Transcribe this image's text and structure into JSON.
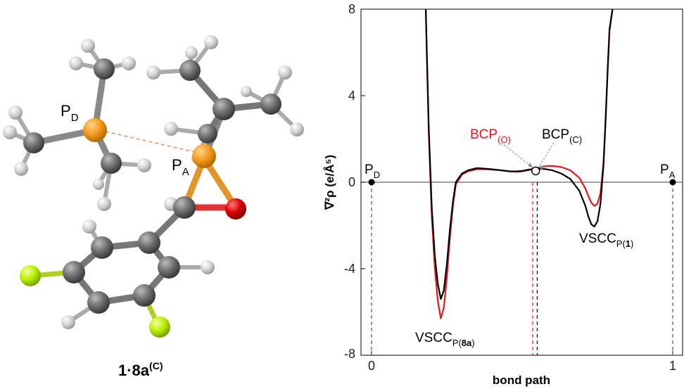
{
  "molecule": {
    "caption_main": "1·8a",
    "caption_sup": "(C)",
    "label_pd": "P",
    "label_pd_sub": "D",
    "label_pa": "P",
    "label_pa_sub": "A"
  },
  "colors": {
    "carbon": "#6b6b6b",
    "hydrogen": "#d6d6d6",
    "phosphorus": "#f39a1e",
    "oxygen": "#d80000",
    "fluorine": "#b8f000",
    "curve_black": "#000000",
    "curve_red": "#e8141c"
  },
  "chart_data": {
    "type": "line",
    "xlabel": "bond path",
    "ylabel": "∇²ρ  (e/Å⁵)",
    "xlim": [
      0,
      1
    ],
    "ylim": [
      -8,
      8
    ],
    "x_ticks": [
      "0",
      "1"
    ],
    "y_ticks": [
      "-8",
      "-4",
      "0",
      "4",
      "8"
    ],
    "series": [
      {
        "color": "black",
        "x": [
          0.18,
          0.185,
          0.19,
          0.2,
          0.21,
          0.22,
          0.23,
          0.24,
          0.25,
          0.26,
          0.27,
          0.28,
          0.3,
          0.32,
          0.35,
          0.38,
          0.4,
          0.43,
          0.46,
          0.48,
          0.5,
          0.52,
          0.54,
          0.56,
          0.58,
          0.6,
          0.63,
          0.66,
          0.69,
          0.71,
          0.72,
          0.73,
          0.74,
          0.75,
          0.76,
          0.77,
          0.775,
          0.78,
          0.785,
          0.79,
          0.8
        ],
        "y": [
          8,
          5.2,
          2.5,
          -1.2,
          -3.4,
          -4.7,
          -5.4,
          -5.0,
          -3.8,
          -2.2,
          -0.9,
          0.0,
          0.4,
          0.55,
          0.65,
          0.62,
          0.6,
          0.55,
          0.5,
          0.5,
          0.52,
          0.58,
          0.62,
          0.63,
          0.6,
          0.55,
          0.4,
          0.15,
          -0.4,
          -1.1,
          -1.6,
          -1.95,
          -2.05,
          -1.8,
          -1.0,
          0.8,
          2.2,
          3.8,
          5.5,
          7.0,
          8
        ]
      },
      {
        "color": "red",
        "x": [
          0.18,
          0.185,
          0.19,
          0.2,
          0.21,
          0.22,
          0.23,
          0.24,
          0.25,
          0.26,
          0.27,
          0.28,
          0.3,
          0.32,
          0.35,
          0.38,
          0.4,
          0.43,
          0.46,
          0.48,
          0.5,
          0.52,
          0.54,
          0.56,
          0.58,
          0.6,
          0.63,
          0.66,
          0.69,
          0.71,
          0.72,
          0.73,
          0.74,
          0.75,
          0.76,
          0.77,
          0.775,
          0.78,
          0.785,
          0.79,
          0.8
        ],
        "y": [
          8,
          5.0,
          2.2,
          -1.6,
          -4.0,
          -5.5,
          -6.3,
          -5.8,
          -4.4,
          -2.6,
          -1.1,
          -0.1,
          0.35,
          0.5,
          0.6,
          0.6,
          0.58,
          0.55,
          0.5,
          0.48,
          0.5,
          0.55,
          0.62,
          0.7,
          0.74,
          0.75,
          0.7,
          0.55,
          0.2,
          -0.3,
          -0.65,
          -0.95,
          -1.1,
          -1.0,
          -0.5,
          0.9,
          2.3,
          3.9,
          5.6,
          7.1,
          8
        ]
      }
    ],
    "markers": [
      {
        "label": "P",
        "sub": "D",
        "x": 0,
        "y": 0
      },
      {
        "label": "P",
        "sub": "A",
        "x": 1,
        "y": 0
      }
    ],
    "annotations": {
      "bcp_o": {
        "text": "BCP",
        "sub": "(O)",
        "x": 0.535,
        "y": 0.5
      },
      "bcp_c": {
        "text": "BCP",
        "sub": "(C)",
        "x": 0.55,
        "y": 0.52
      },
      "vscc_8a": {
        "text": "VSCC",
        "sub_pre": "P(",
        "sub_bold": "8a",
        "sub_post": ")",
        "x": 0.228
      },
      "vscc_1": {
        "text": "VSCC",
        "sub_pre": "P(",
        "sub_bold": "1",
        "sub_post": ")",
        "x": 0.74
      }
    }
  }
}
